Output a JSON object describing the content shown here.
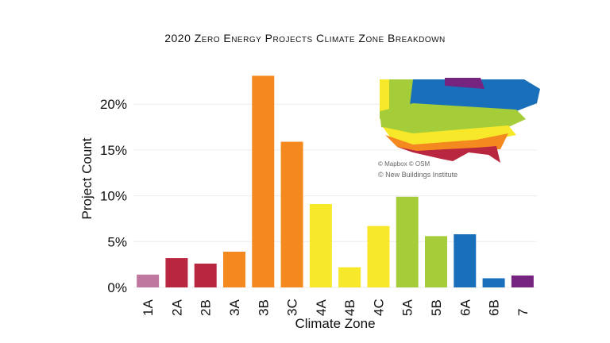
{
  "chart_data": {
    "type": "bar",
    "title": "2020 Zero Energy Projects Climate Zone Breakdown",
    "xlabel": "Climate Zone",
    "ylabel": "Project Count",
    "categories": [
      "1A",
      "2A",
      "2B",
      "3A",
      "3B",
      "3C",
      "4A",
      "4B",
      "4C",
      "5A",
      "5B",
      "6A",
      "6B",
      "7"
    ],
    "values": [
      1.4,
      3.2,
      2.6,
      3.9,
      23.1,
      15.9,
      9.1,
      2.2,
      6.7,
      9.9,
      5.6,
      5.8,
      1.0,
      1.3
    ],
    "colors": [
      "#c0779f",
      "#b9263f",
      "#b9263f",
      "#f4891f",
      "#f4891f",
      "#f4891f",
      "#f7e92a",
      "#f7e92a",
      "#f7e92a",
      "#a5cd39",
      "#a5cd39",
      "#1a6fba",
      "#1a6fba",
      "#76247f"
    ],
    "ylim": [
      0,
      24
    ],
    "yticks": [
      0,
      5,
      10,
      15,
      20
    ],
    "ytick_labels": [
      "0%",
      "5%",
      "10%",
      "15%",
      "20%"
    ],
    "grid": true,
    "legend": "none"
  },
  "map": {
    "credit_1": "© Mapbox © OSM",
    "credit_2": "© New Buildings Institute"
  }
}
